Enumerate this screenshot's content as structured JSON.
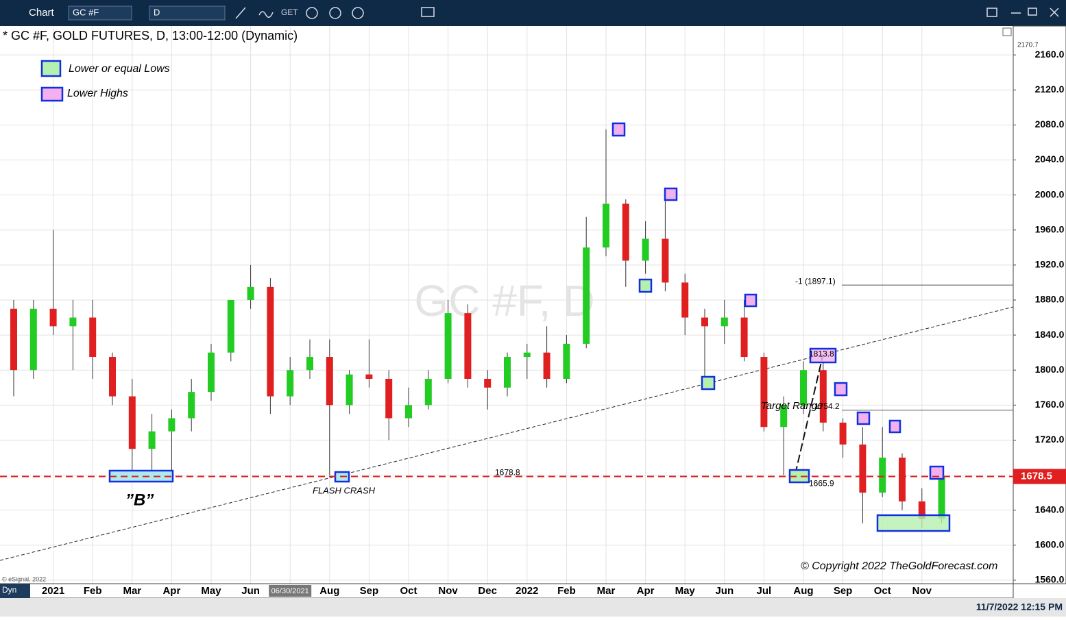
{
  "toolbar": {
    "app": "Chart",
    "symbol": "GC #F",
    "interval": "D",
    "get": "GET"
  },
  "chart_data": {
    "type": "candlestick",
    "title": "* GC #F, GOLD FUTURES, D, 13:00-12:00 (Dynamic)",
    "watermark": "GC #F, D",
    "categories": [
      null,
      null,
      "2021",
      null,
      "Feb",
      null,
      "Mar",
      null,
      "Apr",
      null,
      "May",
      null,
      "Jun",
      null,
      "06/30/2021",
      null,
      "Aug",
      null,
      "Sep",
      null,
      "Oct",
      null,
      "Nov",
      null,
      "Dec",
      null,
      "2022",
      null,
      "Feb",
      null,
      "Mar",
      null,
      "Apr",
      null,
      "May",
      null,
      "Jun",
      null,
      "Jul",
      null,
      "Aug",
      null,
      "Sep",
      null,
      "Oct",
      null,
      "Nov",
      null
    ],
    "open": [
      1870,
      1800,
      1870,
      1850,
      1860,
      1815,
      1770,
      1710,
      1730,
      1745,
      1775,
      1820,
      1880,
      1895,
      1770,
      1800,
      1815,
      1760,
      1795,
      1790,
      1745,
      1760,
      1790,
      1865,
      1790,
      1780,
      1815,
      1820,
      1790,
      1830,
      1940,
      1990,
      1925,
      1950,
      1900,
      1860,
      1850,
      1860,
      1815,
      1735,
      1760,
      1800,
      1740,
      1715,
      1660,
      1700,
      1650,
      1630
    ],
    "high": [
      1880,
      1880,
      1960,
      1880,
      1880,
      1820,
      1790,
      1750,
      1755,
      1790,
      1830,
      1880,
      1920,
      1905,
      1815,
      1835,
      1835,
      1800,
      1835,
      1800,
      1780,
      1800,
      1880,
      1875,
      1800,
      1820,
      1830,
      1850,
      1840,
      1975,
      2075,
      1995,
      1970,
      2000,
      1910,
      1870,
      1880,
      1880,
      1820,
      1770,
      1810,
      1810,
      1745,
      1735,
      1735,
      1705,
      1665,
      1685
    ],
    "low": [
      1770,
      1790,
      1840,
      1800,
      1790,
      1760,
      1680,
      1685,
      1680,
      1730,
      1765,
      1810,
      1870,
      1750,
      1760,
      1790,
      1680,
      1750,
      1780,
      1720,
      1735,
      1755,
      1785,
      1780,
      1755,
      1770,
      1790,
      1780,
      1785,
      1825,
      1930,
      1895,
      1910,
      1890,
      1840,
      1785,
      1830,
      1810,
      1730,
      1680,
      1750,
      1730,
      1700,
      1625,
      1655,
      1640,
      1620,
      1625
    ],
    "close": [
      1800,
      1870,
      1850,
      1860,
      1815,
      1770,
      1710,
      1730,
      1745,
      1775,
      1820,
      1880,
      1895,
      1770,
      1800,
      1815,
      1760,
      1795,
      1790,
      1745,
      1760,
      1790,
      1865,
      1790,
      1780,
      1815,
      1820,
      1790,
      1830,
      1940,
      1990,
      1925,
      1950,
      1900,
      1860,
      1850,
      1860,
      1815,
      1735,
      1760,
      1800,
      1740,
      1715,
      1660,
      1700,
      1650,
      1630,
      1678
    ],
    "up_color": "#22cc22",
    "down_color": "#e02020",
    "ylim": [
      1556,
      2193
    ],
    "yticks": [
      {
        "value": 1560,
        "label": "1560.0"
      },
      {
        "value": 1600,
        "label": "1600.0"
      },
      {
        "value": 1640,
        "label": "1640.0"
      },
      {
        "value": 1680,
        "label": "1680.0"
      },
      {
        "value": 1720,
        "label": "1720.0"
      },
      {
        "value": 1760,
        "label": "1760.0"
      },
      {
        "value": 1800,
        "label": "1800.0"
      },
      {
        "value": 1840,
        "label": "1840.0"
      },
      {
        "value": 1880,
        "label": "1880.0"
      },
      {
        "value": 1920,
        "label": "1920.0"
      },
      {
        "value": 1960,
        "label": "1960.0"
      },
      {
        "value": 2000,
        "label": "2000.0"
      },
      {
        "value": 2040,
        "label": "2040.0"
      },
      {
        "value": 2080,
        "label": "2080.0"
      },
      {
        "value": 2120,
        "label": "2120.0"
      },
      {
        "value": 2160,
        "label": "2160.0"
      }
    ],
    "axis_top_label": "2170.7",
    "grid": true,
    "current_price": {
      "value": 1678.5,
      "label": "1678.5",
      "color": "#e02020"
    },
    "levels": [
      {
        "value": 1897.1,
        "label": "-1 (1897.1)"
      },
      {
        "value": 1754.2,
        "label": "1754.2"
      }
    ],
    "price_labels": [
      {
        "value": 1678.8,
        "label": "1678.8"
      },
      {
        "value": 1813.8,
        "label": "1813.8"
      },
      {
        "value": 1665.9,
        "label": "1665.9"
      }
    ],
    "annotations": [
      "”B”",
      "FLASH CRASH",
      "Target Range"
    ],
    "legend": [
      "Lower or equal  Lows",
      "Lower Highs"
    ],
    "copyright": "© Copyright 2022 TheGoldForecast.com",
    "source": "© eSignal, 2022"
  },
  "status": {
    "mode": "Dyn",
    "datetime": "11/7/2022 12:15 PM"
  }
}
